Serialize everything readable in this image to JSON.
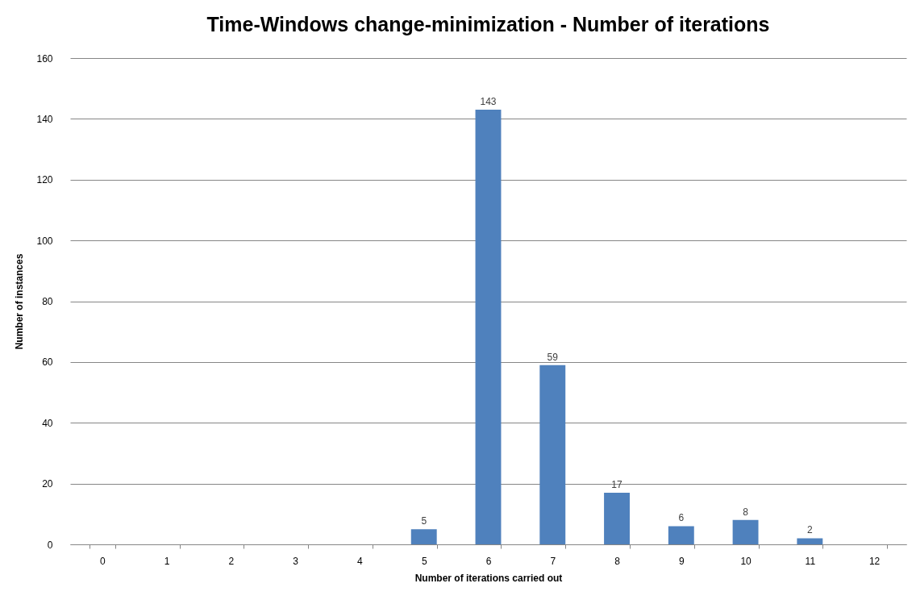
{
  "chart_data": {
    "type": "bar",
    "title": "Time-Windows change-minimization - Number of iterations",
    "xlabel": "Number of iterations carried out",
    "ylabel": "Number of instances",
    "categories": [
      "0",
      "1",
      "2",
      "3",
      "4",
      "5",
      "6",
      "7",
      "8",
      "9",
      "10",
      "11",
      "12"
    ],
    "values": [
      0,
      0,
      0,
      0,
      0,
      5,
      143,
      59,
      17,
      6,
      8,
      2,
      0
    ],
    "value_labels": [
      null,
      null,
      null,
      null,
      null,
      "5",
      "143",
      "59",
      "17",
      "6",
      "8",
      "2",
      null
    ],
    "color": "#4f81bd",
    "ylim": [
      0,
      160
    ],
    "yticks": [
      0,
      20,
      40,
      60,
      80,
      100,
      120,
      140,
      160
    ],
    "grid": "y"
  }
}
